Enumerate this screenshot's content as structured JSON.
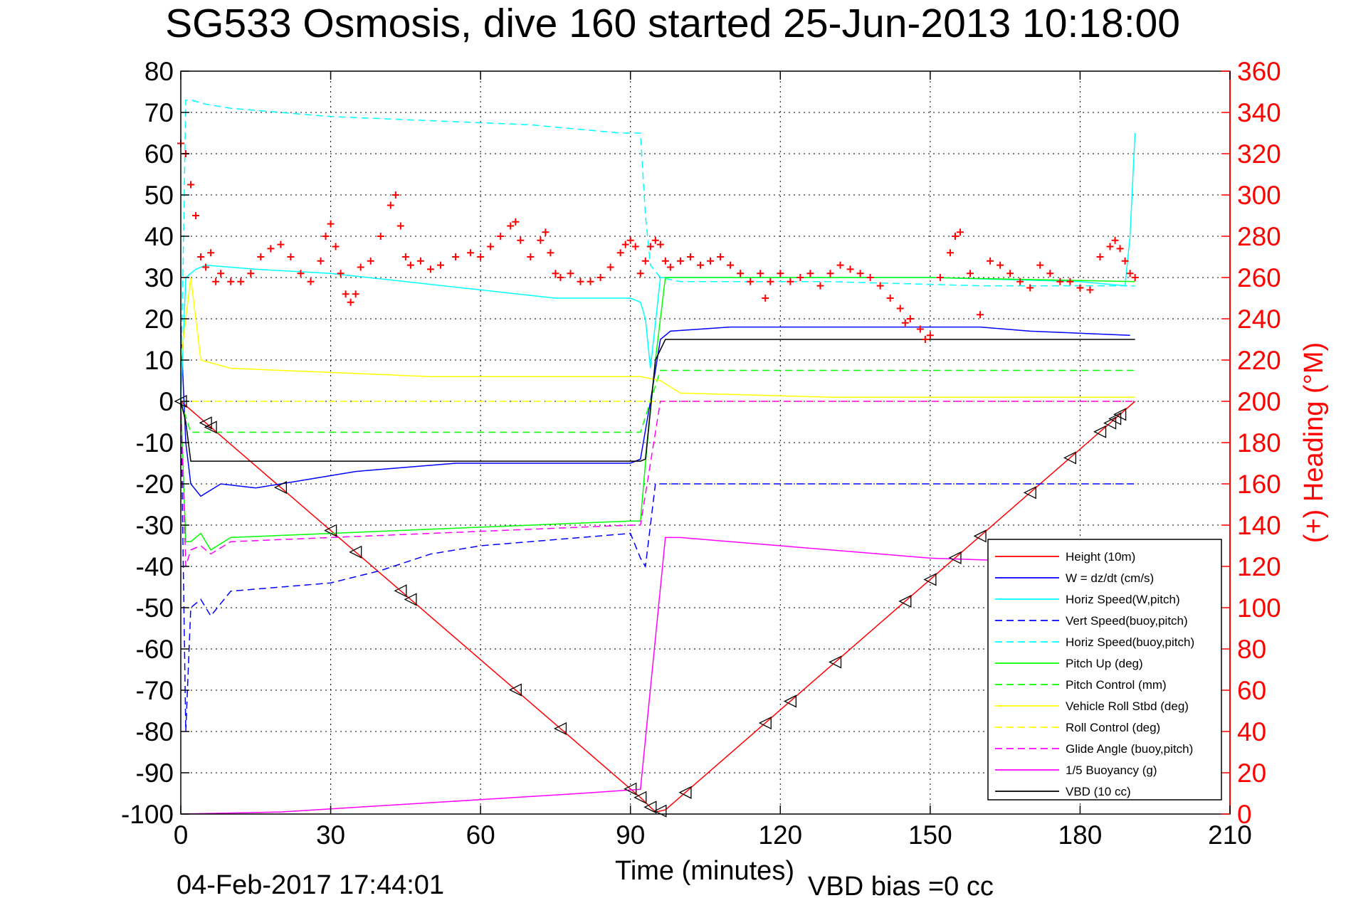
{
  "chart_data": {
    "type": "line",
    "title": "SG533 Osmosis, dive 160 started 25-Jun-2013 10:18:00",
    "xlabel": "Time (minutes)",
    "ylabel_right": "(+) Heading (°M)",
    "xlim": [
      0,
      210
    ],
    "ylim": [
      -100,
      80
    ],
    "ylim_right": [
      0,
      360
    ],
    "x_ticks": [
      "0",
      "30",
      "60",
      "90",
      "120",
      "150",
      "180",
      "210"
    ],
    "y_ticks": [
      "80",
      "70",
      "60",
      "50",
      "40",
      "30",
      "20",
      "10",
      "0",
      "-10",
      "-20",
      "-30",
      "-40",
      "-50",
      "-60",
      "-70",
      "-80",
      "-90",
      "-100"
    ],
    "y_ticks_right": [
      "360",
      "340",
      "320",
      "300",
      "280",
      "260",
      "240",
      "220",
      "200",
      "180",
      "160",
      "140",
      "120",
      "100",
      "80",
      "60",
      "40",
      "20",
      "0"
    ],
    "grid": true,
    "legend_position": "bottom-right",
    "timestamp": "04-Feb-2017 17:44:01",
    "vbd_bias": "VBD bias =0 cc",
    "colors": {
      "red": "#ff0000",
      "blue": "#0000ff",
      "cyan": "#00ffff",
      "green": "#00ff00",
      "yellow": "#ffff00",
      "magenta": "#ff00ff",
      "black": "#000000"
    },
    "series": [
      {
        "name": "Height (10m)",
        "color": "#ff0000",
        "style": "solid",
        "x": [
          0,
          92,
          95,
          97,
          191
        ],
        "y": [
          0,
          -96,
          -99.5,
          -99,
          0
        ]
      },
      {
        "name": "W = dz/dt (cm/s)",
        "color": "#0000ff",
        "style": "solid",
        "x": [
          0,
          1,
          2,
          4,
          8,
          15,
          25,
          35,
          45,
          55,
          65,
          75,
          85,
          90,
          92,
          94,
          96,
          98,
          110,
          130,
          150,
          160,
          170,
          190
        ],
        "y": [
          18,
          -10,
          -20,
          -23,
          -20,
          -21,
          -19,
          -17,
          -16,
          -15,
          -15,
          -15,
          -15,
          -15,
          -14,
          0,
          15,
          17,
          18,
          18,
          18,
          18,
          17,
          16
        ]
      },
      {
        "name": "Horiz Speed(W,pitch)",
        "color": "#00ffff",
        "style": "solid",
        "x": [
          0,
          1,
          3,
          5,
          15,
          30,
          45,
          60,
          75,
          90,
          92,
          93,
          94,
          96,
          100,
          120,
          150,
          180,
          189,
          190,
          191
        ],
        "y": [
          0,
          30,
          32,
          33,
          32,
          31,
          29,
          27,
          25,
          25,
          24,
          20,
          8,
          30,
          30,
          30,
          30,
          29,
          28,
          40,
          65
        ]
      },
      {
        "name": "Vert Speed(buoy,pitch)",
        "color": "#0000ff",
        "style": "dashed",
        "x": [
          0,
          1,
          2,
          4,
          6,
          10,
          20,
          30,
          40,
          50,
          60,
          70,
          80,
          90,
          92,
          93,
          95,
          110,
          150,
          191
        ],
        "y": [
          0,
          -80,
          -50,
          -48,
          -52,
          -46,
          -45,
          -44,
          -41,
          -37,
          -35,
          -34,
          -33,
          -32,
          -38,
          -40,
          -20,
          -20,
          -20,
          -20
        ]
      },
      {
        "name": "Horiz Speed(buoy,pitch)",
        "color": "#00ffff",
        "style": "dashed",
        "x": [
          0,
          1,
          2,
          5,
          10,
          30,
          50,
          70,
          88,
          92,
          93,
          94,
          96,
          100,
          130,
          160,
          191
        ],
        "y": [
          0,
          73,
          73,
          72,
          71,
          69,
          68,
          67,
          65,
          65,
          45,
          33,
          30,
          29,
          29,
          28,
          28
        ]
      },
      {
        "name": "Pitch Up (deg)",
        "color": "#00ff00",
        "style": "solid",
        "x": [
          0,
          1,
          2,
          4,
          6,
          10,
          30,
          50,
          70,
          90,
          92,
          93,
          95,
          97,
          120,
          150,
          191
        ],
        "y": [
          0,
          -34,
          -34,
          -32,
          -36,
          -33,
          -32,
          -31,
          -30,
          -29,
          -29,
          -15,
          10,
          30,
          30,
          30,
          29
        ]
      },
      {
        "name": "Pitch Control (mm)",
        "color": "#00ff00",
        "style": "dashed",
        "x": [
          0,
          2,
          92,
          94,
          96,
          191
        ],
        "y": [
          0,
          -7.5,
          -7.5,
          0,
          7.5,
          7.5
        ]
      },
      {
        "name": "Vehicle Roll Stbd (deg)",
        "color": "#ffff00",
        "style": "solid",
        "x": [
          0,
          2,
          4,
          10,
          30,
          50,
          70,
          90,
          92,
          96,
          100,
          130,
          191
        ],
        "y": [
          10,
          30,
          10,
          8,
          7,
          6,
          6,
          6,
          6,
          5,
          2,
          1,
          1
        ]
      },
      {
        "name": "Roll Control (deg)",
        "color": "#ffff00",
        "style": "dashed",
        "x": [
          0,
          191
        ],
        "y": [
          0,
          0
        ]
      },
      {
        "name": "Glide Angle (buoy,pitch)",
        "color": "#ff00ff",
        "style": "dashed",
        "x": [
          0,
          1,
          2,
          4,
          6,
          10,
          30,
          50,
          70,
          90,
          92,
          94,
          96,
          191
        ],
        "y": [
          0,
          -40,
          -36,
          -35,
          -37,
          -34,
          -33,
          -32,
          -31,
          -30,
          -30,
          -15,
          0,
          0
        ]
      },
      {
        "name": "1/5 Buoyancy (g)",
        "color": "#ff00ff",
        "style": "solid",
        "x": [
          0,
          20,
          40,
          60,
          80,
          92,
          97,
          100,
          120,
          150,
          175
        ],
        "y": [
          -100,
          -99.5,
          -98,
          -96.5,
          -95,
          -94,
          -33,
          -33,
          -35,
          -38,
          -39
        ]
      },
      {
        "name": "VBD (10 cc)",
        "color": "#000000",
        "style": "solid",
        "x": [
          0,
          1,
          2,
          92,
          93,
          95,
          97,
          191
        ],
        "y": [
          0,
          -5,
          -14.5,
          -14.5,
          -14,
          10,
          15,
          15
        ]
      }
    ],
    "heading_series": {
      "name": "(+) Heading",
      "color": "#ff0000",
      "marker": "+",
      "axis": "right",
      "x": [
        0,
        1,
        2,
        3,
        4,
        5,
        6,
        7,
        8,
        10,
        12,
        14,
        16,
        18,
        20,
        22,
        24,
        26,
        28,
        29,
        30,
        31,
        32,
        33,
        34,
        35,
        36,
        38,
        40,
        42,
        43,
        44,
        45,
        46,
        48,
        50,
        52,
        55,
        58,
        60,
        62,
        64,
        66,
        67,
        68,
        70,
        72,
        73,
        74,
        75,
        76,
        78,
        80,
        82,
        84,
        86,
        88,
        89,
        90,
        91,
        92,
        93,
        94,
        95,
        96,
        97,
        98,
        100,
        102,
        104,
        106,
        108,
        110,
        112,
        114,
        116,
        117,
        118,
        120,
        122,
        124,
        126,
        128,
        130,
        132,
        134,
        136,
        138,
        140,
        142,
        144,
        145,
        146,
        148,
        149,
        150,
        152,
        154,
        155,
        156,
        158,
        160,
        162,
        164,
        166,
        168,
        170,
        172,
        174,
        176,
        178,
        180,
        182,
        184,
        186,
        187,
        188,
        189,
        190,
        191
      ],
      "y": [
        325,
        320,
        305,
        290,
        270,
        265,
        272,
        258,
        262,
        258,
        258,
        262,
        270,
        274,
        276,
        270,
        262,
        258,
        268,
        280,
        286,
        275,
        262,
        252,
        248,
        252,
        265,
        268,
        280,
        295,
        300,
        285,
        270,
        266,
        268,
        264,
        266,
        270,
        272,
        270,
        275,
        280,
        285,
        287,
        278,
        270,
        278,
        282,
        272,
        262,
        260,
        262,
        258,
        258,
        260,
        265,
        272,
        276,
        278,
        275,
        262,
        268,
        275,
        278,
        276,
        268,
        265,
        268,
        270,
        266,
        268,
        270,
        266,
        262,
        258,
        262,
        250,
        258,
        262,
        258,
        260,
        262,
        256,
        262,
        266,
        264,
        262,
        260,
        256,
        250,
        245,
        238,
        240,
        235,
        230,
        232,
        260,
        272,
        280,
        282,
        262,
        242,
        268,
        266,
        262,
        258,
        255,
        266,
        262,
        258,
        258,
        255,
        254,
        270,
        275,
        278,
        274,
        268,
        262,
        260
      ]
    }
  }
}
